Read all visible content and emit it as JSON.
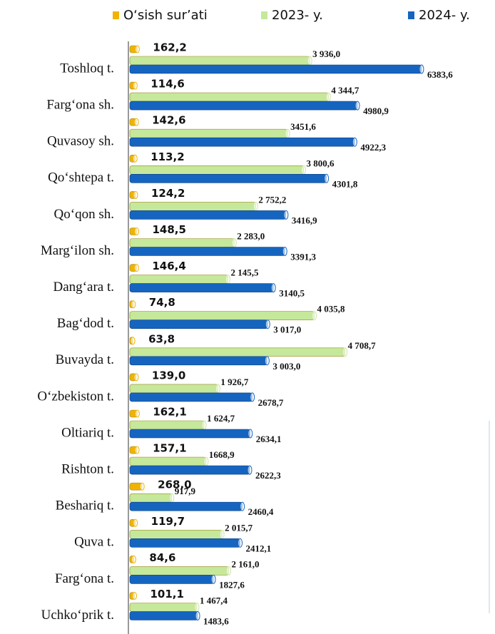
{
  "chart_data": {
    "type": "hbar",
    "categories": [
      "Toshloq t.",
      "Farg‘ona sh.",
      "Quvasoy sh.",
      "Qo‘shtepa t.",
      "Qo‘qon sh.",
      "Marg‘ilon sh.",
      "Dang‘ara t.",
      "Bag‘dod t.",
      "Buvayda t.",
      "O‘zbekiston t.",
      "Oltiariq t.",
      "Rishton t.",
      "Beshariq t.",
      "Quva t.",
      "Farg‘ona t.",
      "Uchko‘prik t."
    ],
    "series": [
      {
        "name": "O‘sish sur’ati",
        "color": "#f0b400",
        "values": [
          162.2,
          114.6,
          142.6,
          113.2,
          124.2,
          148.5,
          146.4,
          74.8,
          63.8,
          139.0,
          162.1,
          157.1,
          268.0,
          119.7,
          84.6,
          101.1
        ],
        "value_labels": [
          "162,2",
          "114,6",
          "142,6",
          "113,2",
          "124,2",
          "148,5",
          "146,4",
          "74,8",
          "63,8",
          "139,0",
          "162,1",
          "157,1",
          "268,0",
          "119,7",
          "84,6",
          "101,1"
        ]
      },
      {
        "name": "2023- y.",
        "color": "#c6e89a",
        "values": [
          3936.0,
          4344.7,
          3451.6,
          3800.6,
          2752.2,
          2283.0,
          2145.5,
          4035.8,
          4708.7,
          1926.7,
          1624.7,
          1668.9,
          917.9,
          2015.7,
          2161.0,
          1467.4
        ],
        "value_labels": [
          "3 936,0",
          "4 344,7",
          "3451,6",
          "3 800,6",
          "2 752,2",
          "2 283,0",
          "2 145,5",
          "4 035,8",
          "4 708,7",
          "1 926,7",
          "1 624,7",
          "1668,9",
          "917,9",
          "2 015,7",
          "2 161,0",
          "1 467,4"
        ]
      },
      {
        "name": "2024- y.",
        "color": "#1565c0",
        "values": [
          6383.6,
          4980.9,
          4922.3,
          4301.8,
          3416.9,
          3391.3,
          3140.5,
          3017.0,
          3003.0,
          2678.7,
          2634.1,
          2622.3,
          2460.4,
          2412.1,
          1827.6,
          1483.6
        ],
        "value_labels": [
          "6383,6",
          "4980,9",
          "4922,3",
          "4301,8",
          "3416,9",
          "3391,3",
          "3140,5",
          "3 017,0",
          "3 003,0",
          "2678,7",
          "2634,1",
          "2622,3",
          "2460,4",
          "2412,1",
          "1827,6",
          "1483,6"
        ]
      }
    ],
    "xlim": [
      0,
      6400
    ],
    "legend": "top"
  }
}
